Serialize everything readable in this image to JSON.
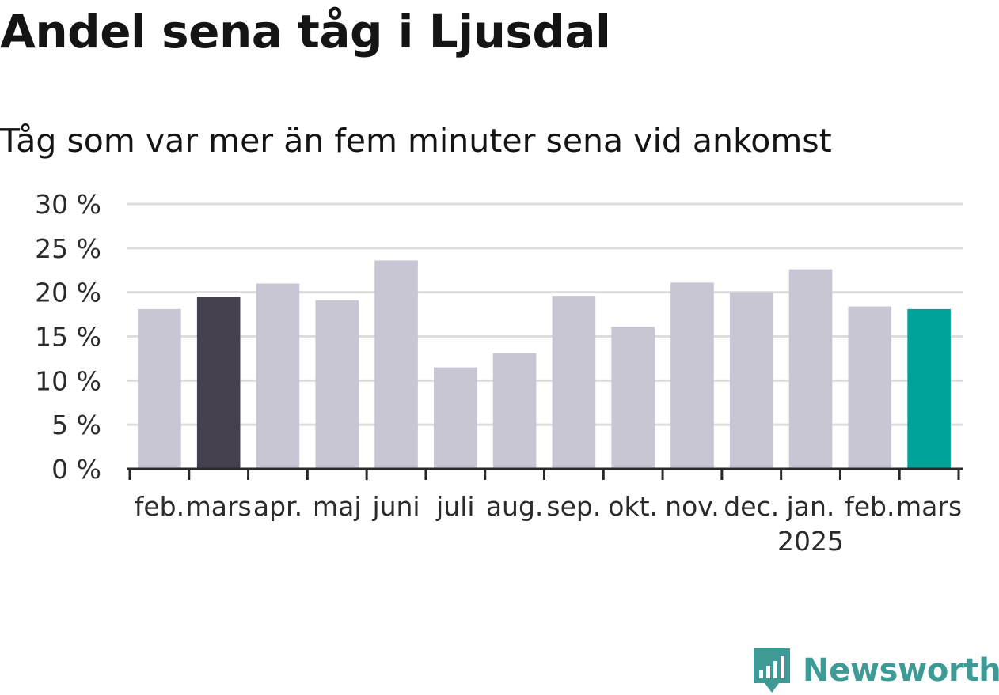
{
  "header": {
    "title": "Andel sena tåg i Ljusdal",
    "subtitle": "Tåg som var mer än fem minuter sena vid ankomst"
  },
  "branding": {
    "name": "Newsworthy",
    "icon": "newsworthy-logo-icon",
    "color": "#3e9a94"
  },
  "colors": {
    "default_bar": "#c8c6d2",
    "comparison_bar": "#45404d",
    "current_bar": "#00a399",
    "grid": "#dddddd",
    "axis": "#2a2a2a"
  },
  "chart_data": {
    "type": "bar",
    "categories": [
      "feb.",
      "mars",
      "apr.",
      "maj",
      "juni",
      "juli",
      "aug.",
      "sep.",
      "okt.",
      "nov.",
      "dec.",
      "jan.",
      "feb.",
      "mars"
    ],
    "year_labels": [
      {
        "index": 11,
        "label": "2025"
      }
    ],
    "values": [
      18.1,
      19.5,
      21.0,
      19.1,
      23.6,
      11.5,
      13.1,
      19.6,
      16.1,
      21.1,
      20.0,
      22.6,
      18.4,
      18.1
    ],
    "highlight": {
      "1": "comparison",
      "13": "current"
    },
    "y_ticks": [
      "0 %",
      "5 %",
      "10 %",
      "15 %",
      "20 %",
      "25 %",
      "30 %"
    ],
    "ylim": [
      0,
      30
    ],
    "grid": true,
    "xlabel": "",
    "ylabel": ""
  }
}
